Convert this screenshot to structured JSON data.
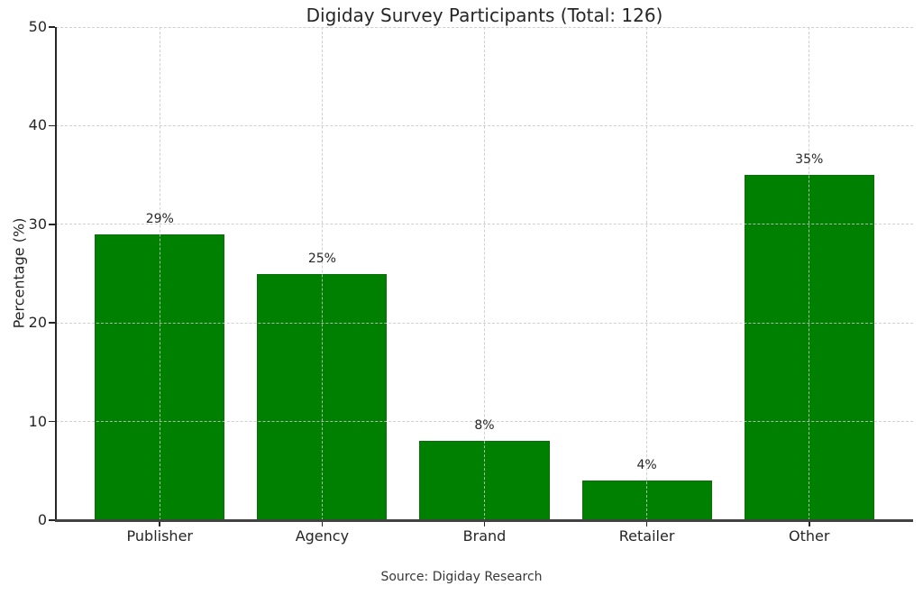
{
  "figure": {
    "background_color": "#ffffff"
  },
  "chart_data": {
    "type": "bar",
    "title": "Digiday Survey Participants (Total: 126)",
    "total_participants": 126,
    "categories": [
      "Publisher",
      "Agency",
      "Brand",
      "Retailer",
      "Other"
    ],
    "values": [
      29,
      25,
      8,
      4,
      35
    ],
    "value_labels": [
      "29%",
      "25%",
      "8%",
      "4%",
      "35%"
    ],
    "xlabel": "",
    "ylabel": "Percentage (%)",
    "ylim": [
      0,
      50
    ],
    "yticks": [
      0,
      10,
      20,
      30,
      40,
      50
    ],
    "grid": {
      "style": "dashed",
      "axes": "both",
      "color": "#d9d9d9",
      "drawn_over_bars": true
    },
    "legend": "none",
    "bar_color": "#008000",
    "bar_edge_color": "#0a6e0a",
    "source_note": "Source: Digiday Research"
  }
}
